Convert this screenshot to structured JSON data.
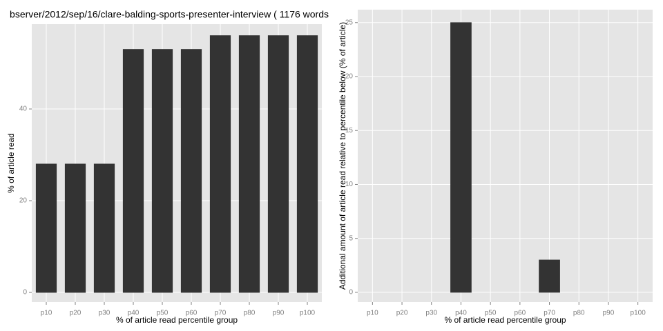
{
  "chart_data": [
    {
      "type": "bar",
      "title": "bserver/2012/sep/16/clare-balding-sports-presenter-interview ( 1176 words",
      "x_label": "% of article read percentile group",
      "y_label": "% of article read",
      "categories": [
        "p10",
        "p20",
        "p30",
        "p40",
        "p50",
        "p60",
        "p70",
        "p80",
        "p90",
        "p100"
      ],
      "values": [
        28,
        28,
        28,
        53,
        53,
        53,
        56,
        56,
        56,
        56
      ],
      "color": "#333333",
      "ylim": [
        -2.1,
        58.5
      ],
      "yticks": [
        0,
        20,
        40
      ],
      "grid": true
    },
    {
      "type": "bar",
      "x_label": "% of article read percentile group",
      "y_label": "Additional amount of article read relative to percentile below (% of article)",
      "categories": [
        "p10",
        "p20",
        "p30",
        "p40",
        "p50",
        "p60",
        "p70",
        "p80",
        "p90",
        "p100"
      ],
      "values": [
        0,
        0,
        0,
        25,
        0,
        0,
        3,
        0,
        0,
        0
      ],
      "color": "#333333",
      "ylim": [
        -0.9,
        26.2
      ],
      "yticks": [
        0,
        5,
        10,
        15,
        20,
        25
      ],
      "grid": true
    }
  ]
}
